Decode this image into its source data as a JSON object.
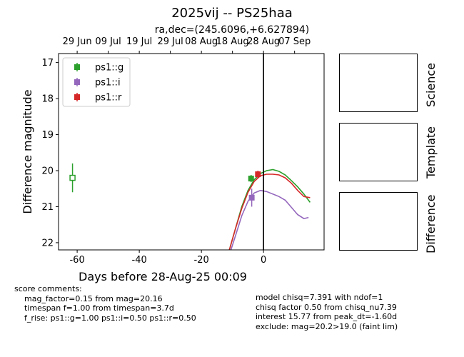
{
  "title": "2025vij -- PS25haa",
  "subtitle": "ra,dec=(245.6096,+6.627894)",
  "chart_data": {
    "type": "scatter",
    "xlabel": "Days before 28-Aug-25 00:09",
    "ylabel": "Difference magnitude",
    "xlim": [
      -66,
      19.5
    ],
    "ylim": [
      22.2,
      16.75
    ],
    "y_inverted": true,
    "x_ticks": [
      -60,
      -40,
      -20,
      0
    ],
    "y_ticks": [
      17,
      18,
      19,
      20,
      21,
      22
    ],
    "top_axis_ticks": [
      {
        "label": "29 Jun",
        "x": -60
      },
      {
        "label": "09 Jul",
        "x": -50
      },
      {
        "label": "19 Jul",
        "x": -40
      },
      {
        "label": "29 Jul",
        "x": -30
      },
      {
        "label": "08 Aug",
        "x": -20
      },
      {
        "label": "18 Aug",
        "x": -10
      },
      {
        "label": "28 Aug",
        "x": 0
      },
      {
        "label": "07 Sep",
        "x": 10
      }
    ],
    "vertical_line_x": 0,
    "legend_position": "upper-left",
    "series": [
      {
        "name": "ps1::g",
        "color": "#2ca02c",
        "points": [
          {
            "x": -4,
            "y": 20.22,
            "err": 0.1
          }
        ],
        "limits": [
          {
            "x": -61.5,
            "y": 20.2,
            "err": 0.4
          }
        ],
        "model": [
          [
            -11,
            22.2
          ],
          [
            -9,
            21.6
          ],
          [
            -7,
            21.0
          ],
          [
            -5,
            20.55
          ],
          [
            -3,
            20.25
          ],
          [
            -1,
            20.08
          ],
          [
            1,
            20.0
          ],
          [
            3,
            19.97
          ],
          [
            5,
            20.02
          ],
          [
            7,
            20.12
          ],
          [
            9,
            20.28
          ],
          [
            11,
            20.45
          ],
          [
            13,
            20.65
          ],
          [
            15,
            20.88
          ]
        ]
      },
      {
        "name": "ps1::i",
        "color": "#9467bd",
        "points": [
          {
            "x": -3.8,
            "y": 20.75,
            "err": 0.25
          }
        ],
        "limits": [],
        "model": [
          [
            -10.5,
            22.2
          ],
          [
            -9,
            21.8
          ],
          [
            -7,
            21.25
          ],
          [
            -5,
            20.85
          ],
          [
            -3,
            20.62
          ],
          [
            -1,
            20.55
          ],
          [
            1,
            20.58
          ],
          [
            3,
            20.65
          ],
          [
            5,
            20.72
          ],
          [
            7,
            20.82
          ],
          [
            9,
            21.02
          ],
          [
            11,
            21.22
          ],
          [
            13,
            21.33
          ],
          [
            14.5,
            21.3
          ]
        ]
      },
      {
        "name": "ps1::r",
        "color": "#d62728",
        "points": [
          {
            "x": -1.8,
            "y": 20.1,
            "err": 0.1
          }
        ],
        "limits": [],
        "model": [
          [
            -11,
            22.2
          ],
          [
            -9,
            21.6
          ],
          [
            -7,
            21.05
          ],
          [
            -5,
            20.6
          ],
          [
            -3,
            20.3
          ],
          [
            -1,
            20.14
          ],
          [
            1,
            20.1
          ],
          [
            3,
            20.1
          ],
          [
            5,
            20.12
          ],
          [
            7,
            20.2
          ],
          [
            9,
            20.35
          ],
          [
            11,
            20.55
          ],
          [
            13,
            20.72
          ],
          [
            15,
            20.75
          ]
        ]
      }
    ]
  },
  "panels": [
    {
      "label": "Science"
    },
    {
      "label": "Template"
    },
    {
      "label": "Difference"
    }
  ],
  "comments_left": "score comments:\n    mag_factor=0.15 from mag=20.16\n    timespan f=1.00 from timespan=3.7d\n    f_rise: ps1::g=1.00 ps1::i=0.50 ps1::r=0.50",
  "comments_right": "model chisq=7.391 with ndof=1\nchisq factor 0.50 from chisq_nu7.39\ninterest 15.77 from peak_dt=-1.60d\nexclude: mag=20.2>19.0 (faint lim)"
}
